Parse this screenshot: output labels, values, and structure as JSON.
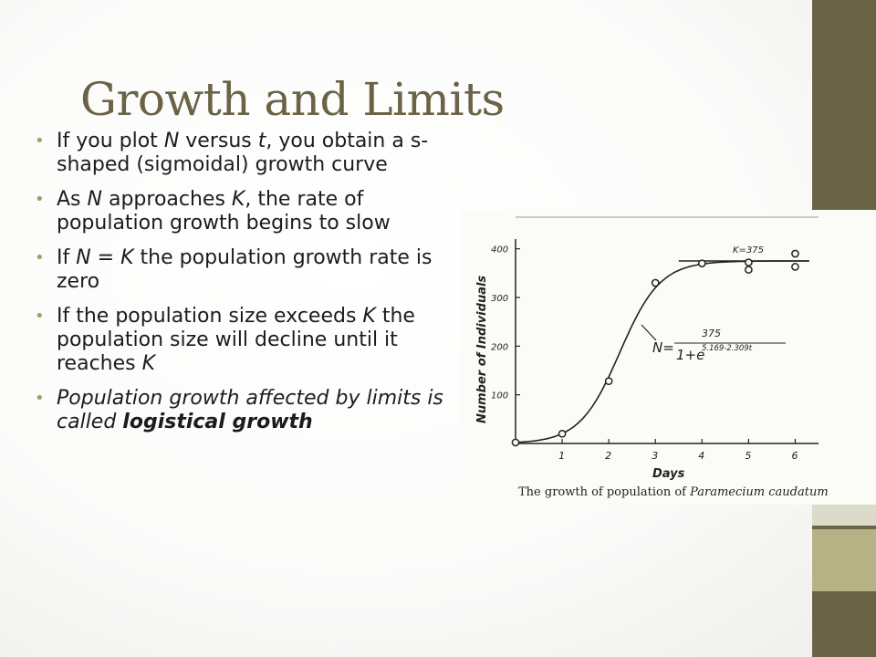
{
  "slide": {
    "title": "Growth and Limits",
    "bullets": [
      {
        "parts": [
          {
            "t": "If you plot "
          },
          {
            "t": "N",
            "i": true
          },
          {
            "t": " versus "
          },
          {
            "t": "t",
            "i": true
          },
          {
            "t": ", you obtain a s-shaped (sigmoidal) growth curve"
          }
        ]
      },
      {
        "parts": [
          {
            "t": "As "
          },
          {
            "t": "N",
            "i": true
          },
          {
            "t": " approaches "
          },
          {
            "t": "K",
            "i": true
          },
          {
            "t": ", the rate of population growth begins to slow"
          }
        ]
      },
      {
        "parts": [
          {
            "t": "If "
          },
          {
            "t": "N = K",
            "i": true
          },
          {
            "t": " the population growth rate is zero"
          }
        ]
      },
      {
        "parts": [
          {
            "t": "If the population size exceeds "
          },
          {
            "t": "K",
            "i": true
          },
          {
            "t": " the population size will decline until it reaches "
          },
          {
            "t": "K",
            "i": true
          }
        ]
      },
      {
        "parts": [
          {
            "t": "Population growth affected by limits is called ",
            "i": true
          },
          {
            "t": "logistical growth",
            "i": true,
            "b": true
          }
        ]
      }
    ],
    "bullet_color": "#a39c6d",
    "accent_bands": [
      "#6b6346",
      "#dcdac8",
      "#6b6346",
      "#b5b286",
      "#6b6346"
    ]
  },
  "chart_data": {
    "type": "scatter",
    "xlabel": "Days",
    "ylabel": "Number of Individuals",
    "xlim": [
      0,
      6.5
    ],
    "ylim": [
      0,
      420
    ],
    "x_ticks": [
      "1",
      "2",
      "3",
      "4",
      "5",
      "6"
    ],
    "y_ticks": [
      "100",
      "200",
      "300",
      "400"
    ],
    "carrying_capacity_label": "K=375",
    "formula": {
      "lhs": "N=",
      "numerator": "375",
      "denominator": "1+e",
      "exponent": "5.169-2.309t"
    },
    "caption_text": "The growth of population of ",
    "caption_species": "Paramecium caudatum",
    "points": [
      {
        "x": 0,
        "y": 2
      },
      {
        "x": 1,
        "y": 20
      },
      {
        "x": 2,
        "y": 128
      },
      {
        "x": 3,
        "y": 330
      },
      {
        "x": 4,
        "y": 370
      },
      {
        "x": 5,
        "y": 372
      },
      {
        "x": 5,
        "y": 357
      },
      {
        "x": 6,
        "y": 390
      },
      {
        "x": 6,
        "y": 363
      }
    ],
    "curve": {
      "K": 375,
      "a": 5.169,
      "b": 2.309
    },
    "k_line_range": [
      3.5,
      6.3
    ]
  }
}
